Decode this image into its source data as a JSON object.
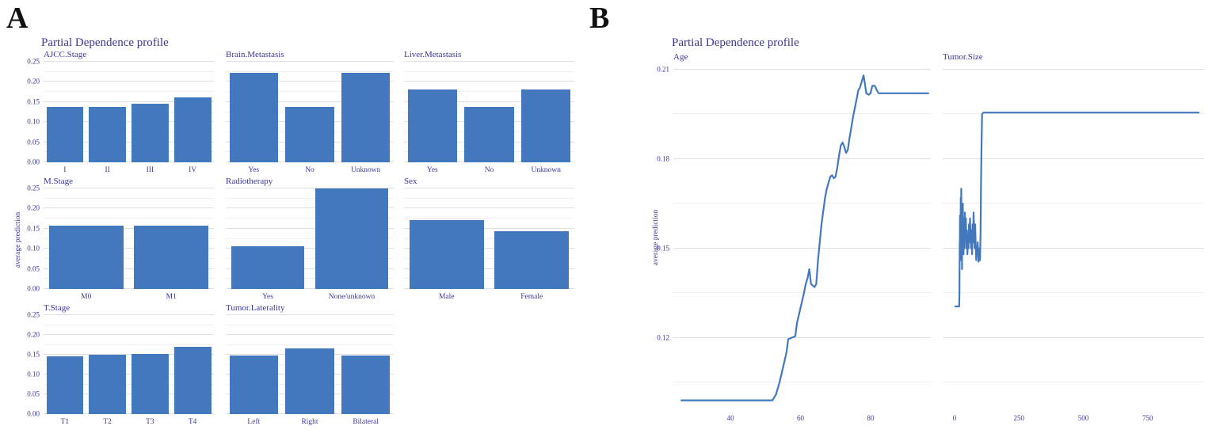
{
  "panels": {
    "a": {
      "label": "A",
      "title": "Partial Dependence profile",
      "y_axis_label": "average prediction"
    },
    "b": {
      "label": "B",
      "title": "Partial Dependence profile",
      "y_axis_label": "average prediction"
    }
  },
  "colors": {
    "series_blue": "#4378bf",
    "text_indigo": "#3b3799",
    "grid_major": "#e0e0e0",
    "grid_minor": "#efefef",
    "figure_label": "#111111"
  },
  "chart_data": [
    {
      "type": "bar",
      "panel": "A",
      "row": 0,
      "col": 0,
      "title": "AJCC.Stage",
      "show_y_labels": true,
      "categories": [
        "I",
        "II",
        "III",
        "IV"
      ],
      "values": [
        0.138,
        0.138,
        0.145,
        0.162
      ],
      "ylim": [
        0,
        0.25
      ],
      "yticks": [
        0,
        0.05,
        0.1,
        0.15,
        0.2,
        0.25
      ]
    },
    {
      "type": "bar",
      "panel": "A",
      "row": 0,
      "col": 1,
      "title": "Brain.Metastasis",
      "show_y_labels": false,
      "categories": [
        "Yes",
        "No",
        "Unknown"
      ],
      "values": [
        0.222,
        0.138,
        0.222
      ],
      "ylim": [
        0,
        0.25
      ],
      "yticks": [
        0,
        0.05,
        0.1,
        0.15,
        0.2,
        0.25
      ]
    },
    {
      "type": "bar",
      "panel": "A",
      "row": 0,
      "col": 2,
      "title": "Liver.Metastasis",
      "show_y_labels": false,
      "categories": [
        "Yes",
        "No",
        "Unknown"
      ],
      "values": [
        0.181,
        0.138,
        0.181
      ],
      "ylim": [
        0,
        0.25
      ],
      "yticks": [
        0,
        0.05,
        0.1,
        0.15,
        0.2,
        0.25
      ]
    },
    {
      "type": "bar",
      "panel": "A",
      "row": 1,
      "col": 0,
      "title": "M.Stage",
      "show_y_labels": true,
      "categories": [
        "M0",
        "M1"
      ],
      "values": [
        0.158,
        0.158
      ],
      "ylim": [
        0,
        0.25
      ],
      "yticks": [
        0,
        0.05,
        0.1,
        0.15,
        0.2,
        0.25
      ]
    },
    {
      "type": "bar",
      "panel": "A",
      "row": 1,
      "col": 1,
      "title": "Radiotherapy",
      "show_y_labels": false,
      "categories": [
        "Yes",
        "None/unknown"
      ],
      "values": [
        0.107,
        0.25
      ],
      "ylim": [
        0,
        0.25
      ],
      "yticks": [
        0,
        0.05,
        0.1,
        0.15,
        0.2,
        0.25
      ]
    },
    {
      "type": "bar",
      "panel": "A",
      "row": 1,
      "col": 2,
      "title": "Sex",
      "show_y_labels": false,
      "categories": [
        "Male",
        "Female"
      ],
      "values": [
        0.171,
        0.144
      ],
      "ylim": [
        0,
        0.25
      ],
      "yticks": [
        0,
        0.05,
        0.1,
        0.15,
        0.2,
        0.25
      ]
    },
    {
      "type": "bar",
      "panel": "A",
      "row": 2,
      "col": 0,
      "title": "T.Stage",
      "show_y_labels": true,
      "categories": [
        "T1",
        "T2",
        "T3",
        "T4"
      ],
      "values": [
        0.147,
        0.15,
        0.152,
        0.171
      ],
      "ylim": [
        0,
        0.25
      ],
      "yticks": [
        0,
        0.05,
        0.1,
        0.15,
        0.2,
        0.25
      ]
    },
    {
      "type": "bar",
      "panel": "A",
      "row": 2,
      "col": 1,
      "title": "Tumor.Laterality",
      "show_y_labels": false,
      "categories": [
        "Left",
        "Right",
        "Bilateral"
      ],
      "values": [
        0.149,
        0.166,
        0.148
      ],
      "ylim": [
        0,
        0.25
      ],
      "yticks": [
        0,
        0.05,
        0.1,
        0.15,
        0.2,
        0.25
      ]
    },
    {
      "type": "line",
      "panel": "B",
      "slot": 0,
      "title": "Age",
      "show_y_labels": true,
      "xlim": [
        23.7,
        97.2
      ],
      "xticks": [
        40,
        60,
        80
      ],
      "ylim": [
        0.0965,
        0.2115
      ],
      "yticks": [
        0.12,
        0.15,
        0.18,
        0.21
      ],
      "points": [
        [
          26,
          0.099
        ],
        [
          52,
          0.099
        ],
        [
          53,
          0.101
        ],
        [
          54,
          0.105
        ],
        [
          55,
          0.11
        ],
        [
          56,
          0.115
        ],
        [
          56.5,
          0.1195
        ],
        [
          58.5,
          0.1205
        ],
        [
          59,
          0.125
        ],
        [
          60,
          0.13
        ],
        [
          61,
          0.135
        ],
        [
          61.5,
          0.138
        ],
        [
          62,
          0.14
        ],
        [
          62.5,
          0.143
        ],
        [
          63,
          0.138
        ],
        [
          64,
          0.137
        ],
        [
          64.5,
          0.138
        ],
        [
          65,
          0.146
        ],
        [
          65.5,
          0.152
        ],
        [
          66,
          0.158
        ],
        [
          67,
          0.167
        ],
        [
          67.5,
          0.17
        ],
        [
          68,
          0.172
        ],
        [
          68.5,
          0.174
        ],
        [
          69,
          0.1745
        ],
        [
          69.5,
          0.1735
        ],
        [
          70,
          0.174
        ],
        [
          70.5,
          0.177
        ],
        [
          71,
          0.181
        ],
        [
          71.5,
          0.1845
        ],
        [
          72,
          0.1855
        ],
        [
          72.5,
          0.184
        ],
        [
          73,
          0.182
        ],
        [
          73.5,
          0.183
        ],
        [
          74,
          0.187
        ],
        [
          75,
          0.194
        ],
        [
          76,
          0.2
        ],
        [
          76.5,
          0.203
        ],
        [
          77,
          0.204
        ],
        [
          78,
          0.208
        ],
        [
          78.4,
          0.205
        ],
        [
          78.8,
          0.202
        ],
        [
          79.5,
          0.2015
        ],
        [
          80,
          0.202
        ],
        [
          80.5,
          0.2045
        ],
        [
          81.2,
          0.2045
        ],
        [
          81.8,
          0.203
        ],
        [
          82.3,
          0.202
        ],
        [
          83,
          0.202
        ],
        [
          96.5,
          0.202
        ]
      ]
    },
    {
      "type": "line",
      "panel": "B",
      "slot": 1,
      "title": "Tumor.Size",
      "show_y_labels": false,
      "xlim": [
        -46,
        969
      ],
      "xticks": [
        0,
        250,
        500,
        750
      ],
      "ylim": [
        0.0965,
        0.2115
      ],
      "yticks": [
        0.12,
        0.15,
        0.18,
        0.21
      ],
      "points": [
        [
          3,
          0.1305
        ],
        [
          18,
          0.1305
        ],
        [
          19,
          0.134
        ],
        [
          20,
          0.152
        ],
        [
          20.5,
          0.146
        ],
        [
          21,
          0.161
        ],
        [
          21.5,
          0.15
        ],
        [
          22,
          0.158
        ],
        [
          23,
          0.146
        ],
        [
          24,
          0.167
        ],
        [
          25,
          0.153
        ],
        [
          26,
          0.17
        ],
        [
          27,
          0.156
        ],
        [
          28,
          0.162
        ],
        [
          29,
          0.143
        ],
        [
          30,
          0.158
        ],
        [
          31,
          0.15
        ],
        [
          32,
          0.165
        ],
        [
          33,
          0.152
        ],
        [
          34,
          0.16
        ],
        [
          35,
          0.148
        ],
        [
          36,
          0.157
        ],
        [
          38,
          0.15
        ],
        [
          40,
          0.162
        ],
        [
          42,
          0.154
        ],
        [
          44,
          0.16
        ],
        [
          46,
          0.15
        ],
        [
          48,
          0.156
        ],
        [
          50,
          0.148
        ],
        [
          52,
          0.154
        ],
        [
          54,
          0.15
        ],
        [
          56,
          0.158
        ],
        [
          58,
          0.152
        ],
        [
          60,
          0.16
        ],
        [
          62,
          0.155
        ],
        [
          64,
          0.15
        ],
        [
          66,
          0.156
        ],
        [
          68,
          0.148
        ],
        [
          70,
          0.158
        ],
        [
          72,
          0.152
        ],
        [
          74,
          0.162
        ],
        [
          76,
          0.155
        ],
        [
          78,
          0.15
        ],
        [
          80,
          0.158
        ],
        [
          82,
          0.152
        ],
        [
          84,
          0.146
        ],
        [
          86,
          0.15
        ],
        [
          88,
          0.148
        ],
        [
          90,
          0.152
        ],
        [
          93,
          0.1455
        ],
        [
          96,
          0.15
        ],
        [
          99,
          0.146
        ],
        [
          101,
          0.155
        ],
        [
          103,
          0.172
        ],
        [
          105,
          0.186
        ],
        [
          107,
          0.195
        ],
        [
          112,
          0.1955
        ],
        [
          948,
          0.1955
        ]
      ]
    }
  ]
}
